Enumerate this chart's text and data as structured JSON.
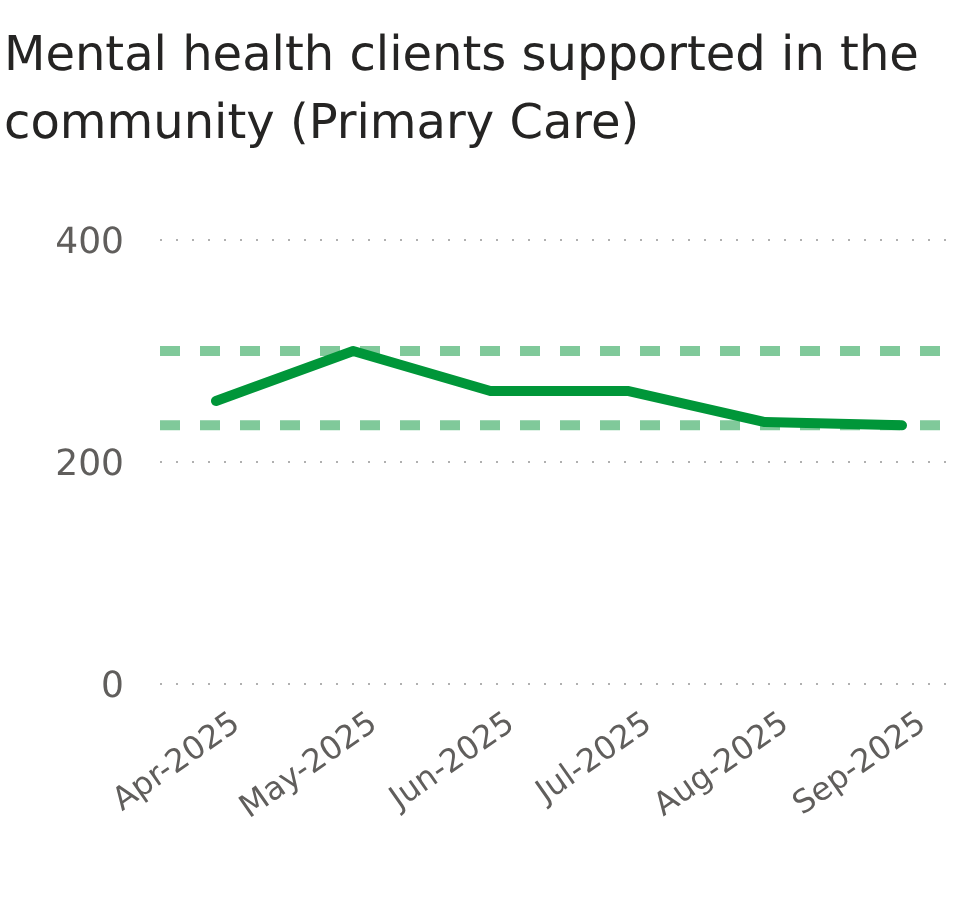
{
  "chart_data": {
    "type": "line",
    "title": "Mental health clients supported in the community (Primary Care)",
    "categories": [
      "Apr-2025",
      "May-2025",
      "Jun-2025",
      "Jul-2025",
      "Aug-2025",
      "Sep-2025"
    ],
    "series": [
      {
        "color": "#009639",
        "values": [
          255,
          300,
          264,
          264,
          236,
          233
        ]
      }
    ],
    "ylim": [
      0,
      400
    ],
    "yticks": [
      0,
      200,
      400
    ],
    "grid": "y",
    "line_style": "solid",
    "marker": "none",
    "ref_lines": [
      {
        "axis": "y",
        "value": 300,
        "color": "#80c99a",
        "line_style": "dashed"
      },
      {
        "axis": "y",
        "value": 233,
        "color": "#80c99a",
        "line_style": "dashed"
      }
    ]
  }
}
